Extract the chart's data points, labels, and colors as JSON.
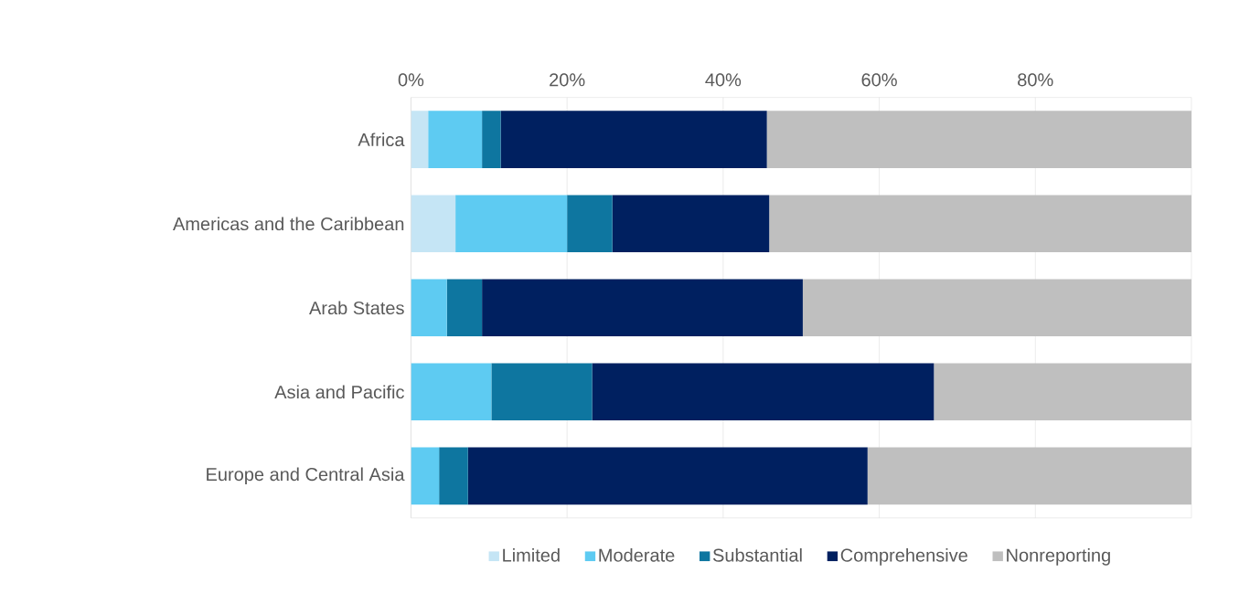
{
  "chart_data": {
    "type": "bar",
    "orientation": "horizontal",
    "stacked": true,
    "categories": [
      "Africa",
      "Americas and the Caribbean",
      "Arab States",
      "Asia and Pacific",
      "Europe and Central Asia"
    ],
    "series": [
      {
        "name": "Limited",
        "color": "#c5e5f5",
        "values": [
          2.2,
          5.7,
          0,
          0,
          0
        ]
      },
      {
        "name": "Moderate",
        "color": "#5ecbf2",
        "values": [
          6.9,
          14.3,
          4.6,
          10.3,
          3.6
        ]
      },
      {
        "name": "Substantial",
        "color": "#0e76a0",
        "values": [
          2.4,
          5.8,
          4.5,
          12.9,
          3.7
        ]
      },
      {
        "name": "Comprehensive",
        "color": "#002060",
        "values": [
          34.1,
          20.1,
          41.1,
          43.8,
          51.2
        ]
      },
      {
        "name": "Nonreporting",
        "color": "#bfbfbf",
        "values": [
          54.4,
          54.1,
          49.8,
          33.0,
          41.5
        ]
      }
    ],
    "xlim": [
      0,
      100
    ],
    "xticks": [
      {
        "value": 0,
        "label": "0%"
      },
      {
        "value": 20,
        "label": "20%"
      },
      {
        "value": 40,
        "label": "40%"
      },
      {
        "value": 60,
        "label": "60%"
      },
      {
        "value": 80,
        "label": "80%"
      }
    ],
    "grid": "x",
    "legend": "bottom"
  }
}
